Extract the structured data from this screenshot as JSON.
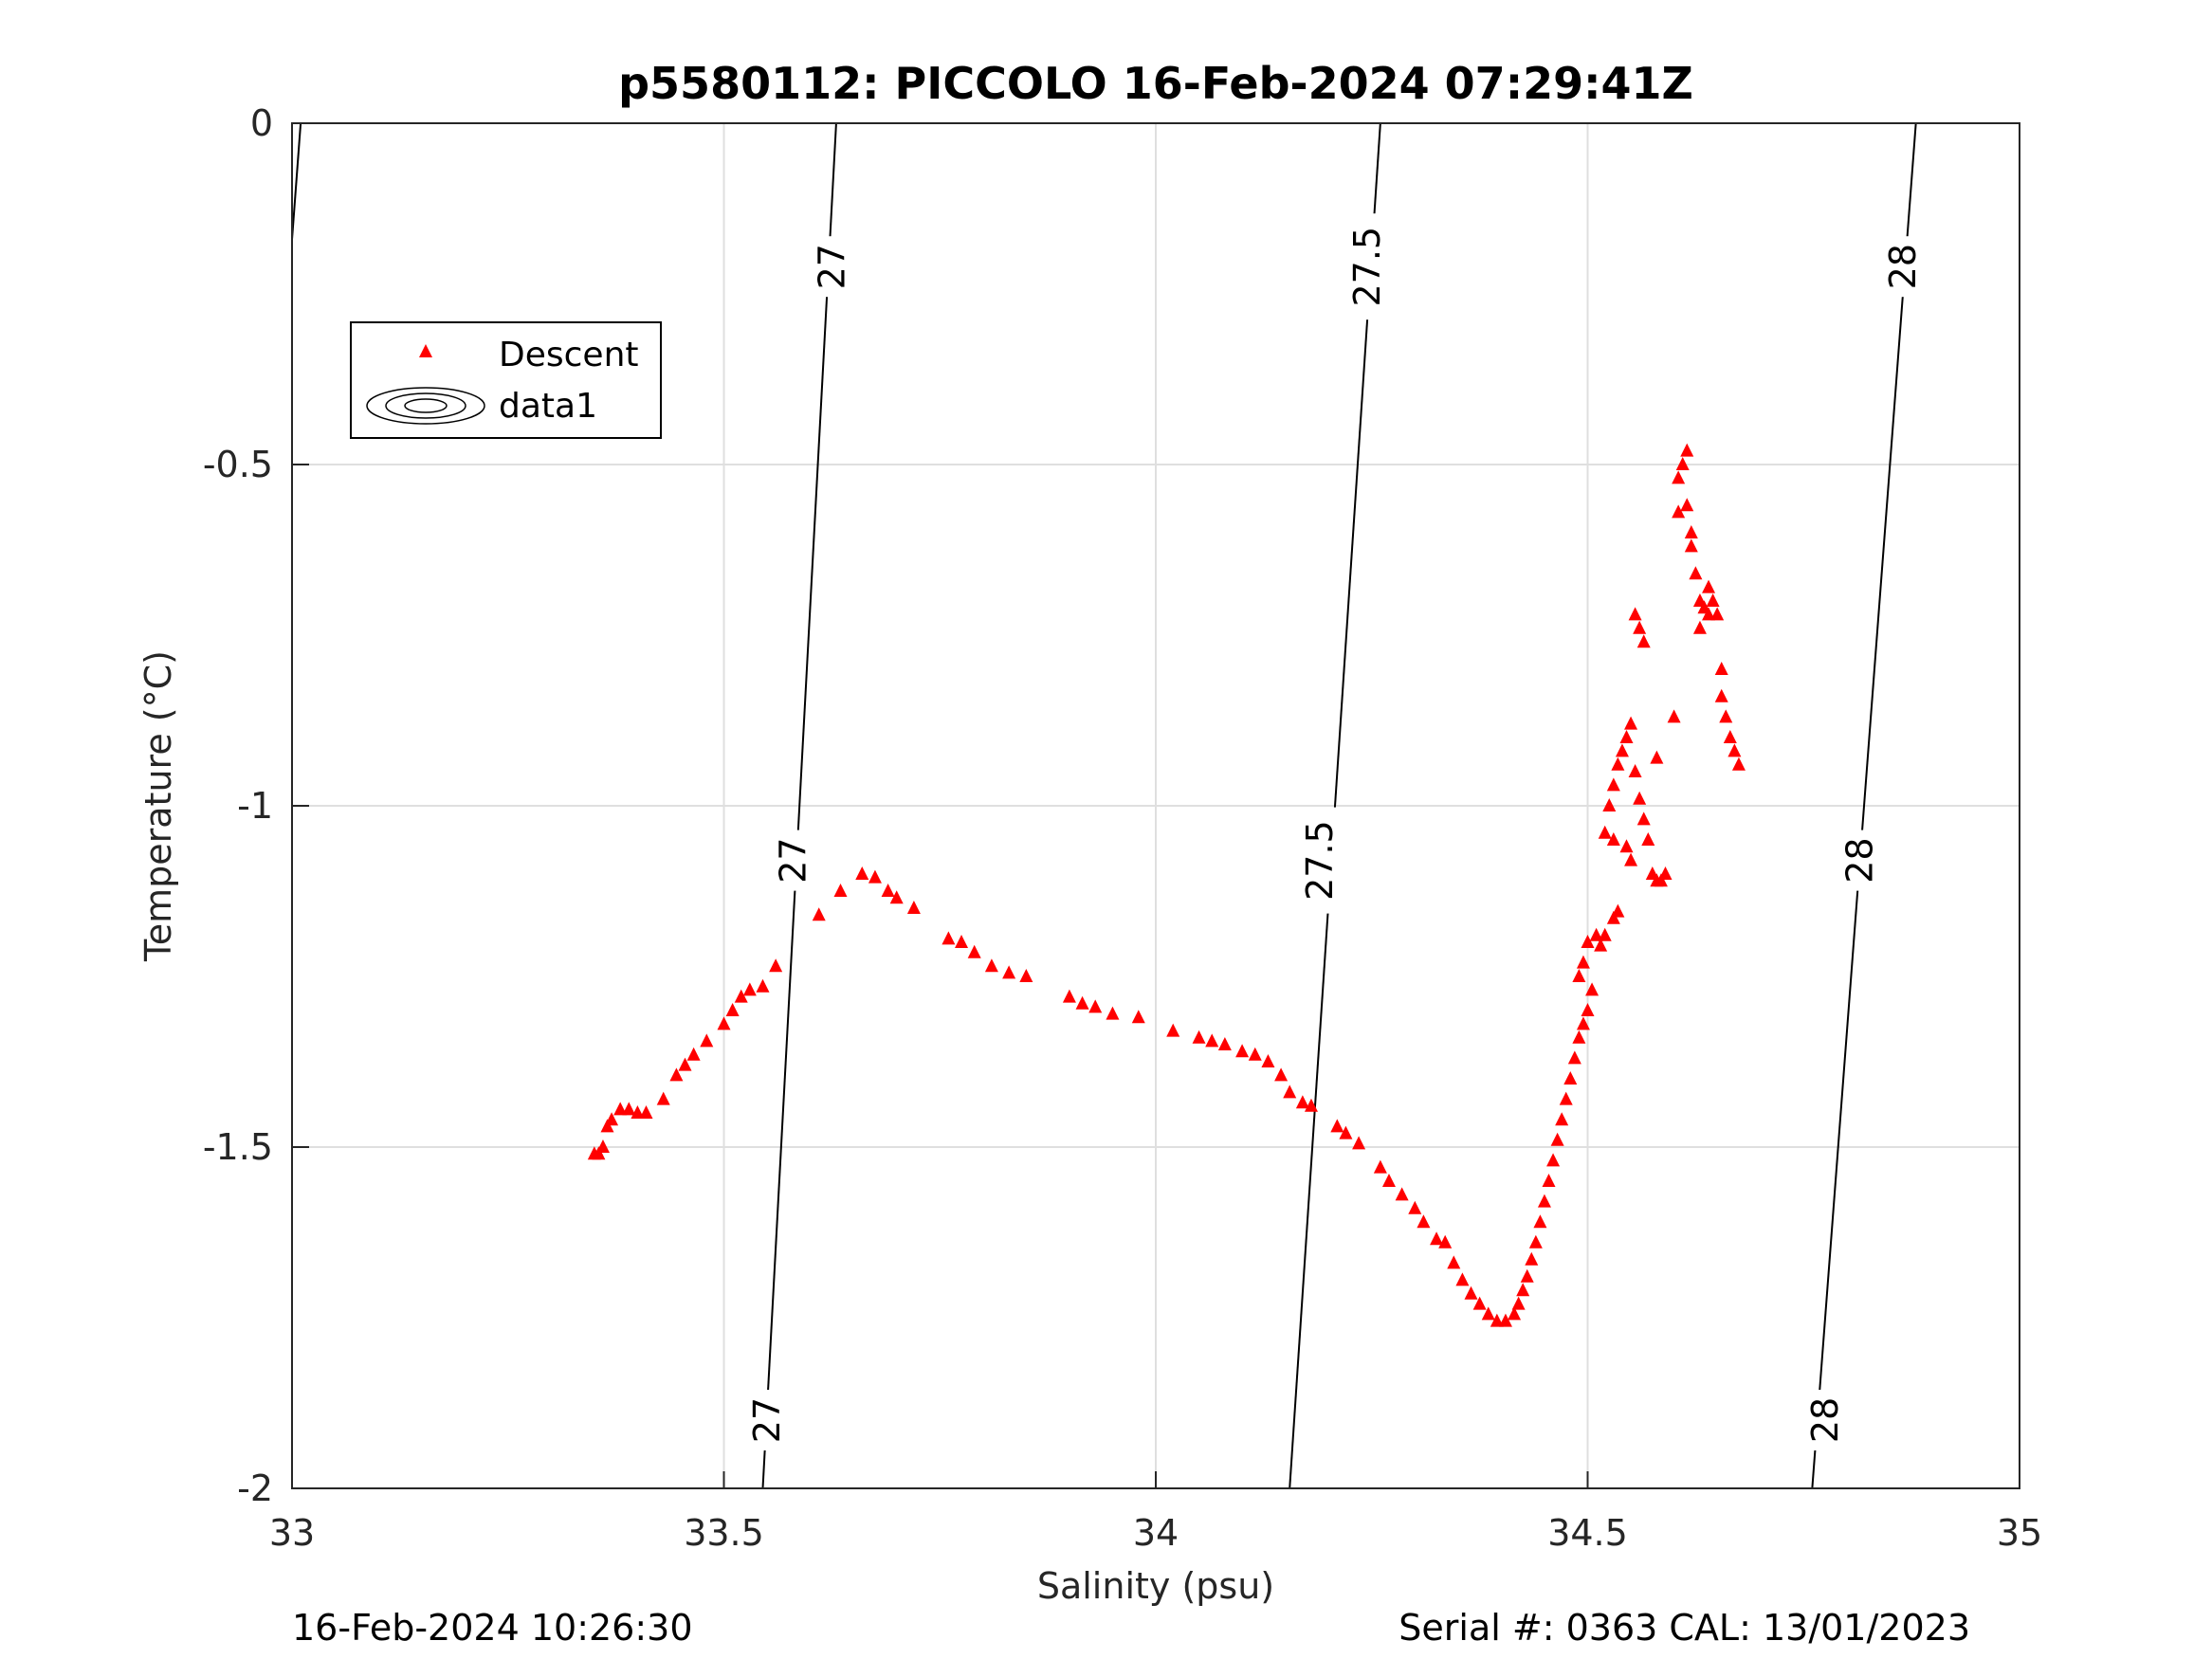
{
  "chart_data": {
    "type": "scatter",
    "title": "p5580112: PICCOLO 16-Feb-2024 07:29:41Z",
    "xlabel": "Salinity (psu)",
    "ylabel": "Temperature (°C)",
    "xlim": [
      33,
      35
    ],
    "ylim": [
      -2,
      0
    ],
    "xticks": [
      "33",
      "33.5",
      "34",
      "34.5",
      "35"
    ],
    "yticks": [
      "0",
      "-0.5",
      "-1",
      "-1.5",
      "-2"
    ],
    "grid": true,
    "legend_position": "top-left",
    "legend": [
      "Descent",
      "data1"
    ],
    "series": [
      {
        "name": "Descent",
        "marker": "triangle",
        "color": "#ff0000",
        "points": [
          [
            33.35,
            -1.51
          ],
          [
            33.355,
            -1.51
          ],
          [
            33.36,
            -1.5
          ],
          [
            33.365,
            -1.47
          ],
          [
            33.37,
            -1.46
          ],
          [
            33.38,
            -1.445
          ],
          [
            33.39,
            -1.445
          ],
          [
            33.4,
            -1.45
          ],
          [
            33.41,
            -1.45
          ],
          [
            33.43,
            -1.43
          ],
          [
            33.445,
            -1.395
          ],
          [
            33.455,
            -1.38
          ],
          [
            33.465,
            -1.365
          ],
          [
            33.48,
            -1.345
          ],
          [
            33.5,
            -1.32
          ],
          [
            33.51,
            -1.3
          ],
          [
            33.52,
            -1.28
          ],
          [
            33.53,
            -1.27
          ],
          [
            33.545,
            -1.265
          ],
          [
            33.56,
            -1.235
          ],
          [
            33.61,
            -1.16
          ],
          [
            33.635,
            -1.125
          ],
          [
            33.66,
            -1.1
          ],
          [
            33.675,
            -1.105
          ],
          [
            33.69,
            -1.125
          ],
          [
            33.7,
            -1.135
          ],
          [
            33.72,
            -1.15
          ],
          [
            33.76,
            -1.195
          ],
          [
            33.775,
            -1.2
          ],
          [
            33.79,
            -1.215
          ],
          [
            33.81,
            -1.235
          ],
          [
            33.83,
            -1.245
          ],
          [
            33.85,
            -1.25
          ],
          [
            33.9,
            -1.28
          ],
          [
            33.915,
            -1.29
          ],
          [
            33.93,
            -1.295
          ],
          [
            33.95,
            -1.305
          ],
          [
            33.98,
            -1.31
          ],
          [
            34.02,
            -1.33
          ],
          [
            34.05,
            -1.34
          ],
          [
            34.065,
            -1.345
          ],
          [
            34.08,
            -1.35
          ],
          [
            34.1,
            -1.36
          ],
          [
            34.115,
            -1.365
          ],
          [
            34.13,
            -1.375
          ],
          [
            34.145,
            -1.395
          ],
          [
            34.155,
            -1.42
          ],
          [
            34.17,
            -1.435
          ],
          [
            34.18,
            -1.44
          ],
          [
            34.21,
            -1.47
          ],
          [
            34.22,
            -1.48
          ],
          [
            34.235,
            -1.495
          ],
          [
            34.26,
            -1.53
          ],
          [
            34.27,
            -1.55
          ],
          [
            34.285,
            -1.57
          ],
          [
            34.3,
            -1.59
          ],
          [
            34.31,
            -1.61
          ],
          [
            34.325,
            -1.635
          ],
          [
            34.335,
            -1.64
          ],
          [
            34.345,
            -1.67
          ],
          [
            34.355,
            -1.695
          ],
          [
            34.365,
            -1.715
          ],
          [
            34.375,
            -1.73
          ],
          [
            34.385,
            -1.745
          ],
          [
            34.395,
            -1.755
          ],
          [
            34.405,
            -1.755
          ],
          [
            34.415,
            -1.745
          ],
          [
            34.42,
            -1.73
          ],
          [
            34.425,
            -1.71
          ],
          [
            34.43,
            -1.69
          ],
          [
            34.435,
            -1.665
          ],
          [
            34.44,
            -1.64
          ],
          [
            34.445,
            -1.61
          ],
          [
            34.45,
            -1.58
          ],
          [
            34.455,
            -1.55
          ],
          [
            34.46,
            -1.52
          ],
          [
            34.465,
            -1.49
          ],
          [
            34.47,
            -1.46
          ],
          [
            34.475,
            -1.43
          ],
          [
            34.48,
            -1.4
          ],
          [
            34.485,
            -1.37
          ],
          [
            34.49,
            -1.34
          ],
          [
            34.495,
            -1.32
          ],
          [
            34.5,
            -1.3
          ],
          [
            34.505,
            -1.27
          ],
          [
            34.49,
            -1.25
          ],
          [
            34.495,
            -1.23
          ],
          [
            34.5,
            -1.2
          ],
          [
            34.51,
            -1.19
          ],
          [
            34.515,
            -1.205
          ],
          [
            34.52,
            -1.19
          ],
          [
            34.53,
            -1.165
          ],
          [
            34.535,
            -1.155
          ],
          [
            34.52,
            -1.04
          ],
          [
            34.525,
            -1.0
          ],
          [
            34.53,
            -0.97
          ],
          [
            34.535,
            -0.94
          ],
          [
            34.54,
            -0.92
          ],
          [
            34.545,
            -0.9
          ],
          [
            34.55,
            -0.88
          ],
          [
            34.555,
            -0.95
          ],
          [
            34.56,
            -0.99
          ],
          [
            34.565,
            -1.02
          ],
          [
            34.57,
            -1.05
          ],
          [
            34.575,
            -1.1
          ],
          [
            34.58,
            -1.11
          ],
          [
            34.585,
            -1.11
          ],
          [
            34.59,
            -1.1
          ],
          [
            34.55,
            -1.08
          ],
          [
            34.545,
            -1.06
          ],
          [
            34.53,
            -1.05
          ],
          [
            34.56,
            -0.74
          ],
          [
            34.555,
            -0.72
          ],
          [
            34.565,
            -0.76
          ],
          [
            34.58,
            -0.93
          ],
          [
            34.6,
            -0.87
          ],
          [
            34.605,
            -0.57
          ],
          [
            34.61,
            -0.5
          ],
          [
            34.615,
            -0.56
          ],
          [
            34.62,
            -0.62
          ],
          [
            34.625,
            -0.66
          ],
          [
            34.63,
            -0.7
          ],
          [
            34.635,
            -0.71
          ],
          [
            34.64,
            -0.72
          ],
          [
            34.645,
            -0.7
          ],
          [
            34.65,
            -0.72
          ],
          [
            34.655,
            -0.8
          ],
          [
            34.66,
            -0.87
          ],
          [
            34.665,
            -0.9
          ],
          [
            34.67,
            -0.92
          ],
          [
            34.675,
            -0.94
          ],
          [
            34.615,
            -0.48
          ],
          [
            34.605,
            -0.52
          ],
          [
            34.62,
            -0.6
          ],
          [
            34.63,
            -0.74
          ],
          [
            34.64,
            -0.68
          ],
          [
            34.655,
            -0.84
          ]
        ]
      }
    ],
    "contours": [
      {
        "level": "27",
        "label": "27",
        "line": [
          [
            33.0,
            -0.17
          ],
          [
            33.01,
            0.0
          ]
        ]
      },
      {
        "level": "27",
        "label": "27",
        "line": [
          [
            33.545,
            -2.0
          ],
          [
            33.63,
            0.0
          ]
        ]
      },
      {
        "level": "27.5",
        "label": "27.5",
        "line": [
          [
            34.155,
            -2.0
          ],
          [
            34.26,
            0.0
          ]
        ]
      },
      {
        "level": "28",
        "label": "28",
        "line": [
          [
            34.76,
            -2.0
          ],
          [
            34.88,
            0.0
          ]
        ]
      }
    ],
    "contour_labels": [
      {
        "text": "27",
        "at": [
          33.625,
          -0.21
        ]
      },
      {
        "text": "27",
        "at": [
          33.58,
          -1.08
        ]
      },
      {
        "text": "27",
        "at": [
          33.55,
          -1.9
        ]
      },
      {
        "text": "27.5",
        "at": [
          34.245,
          -0.21
        ]
      },
      {
        "text": "27.5",
        "at": [
          34.19,
          -1.08
        ]
      },
      {
        "text": "28",
        "at": [
          34.865,
          -0.21
        ]
      },
      {
        "text": "28",
        "at": [
          34.815,
          -1.08
        ]
      },
      {
        "text": "28",
        "at": [
          34.775,
          -1.9
        ]
      }
    ]
  },
  "footer": {
    "left": "16-Feb-2024 10:26:30",
    "right": "Serial #: 0363  CAL: 13/01/2023"
  }
}
